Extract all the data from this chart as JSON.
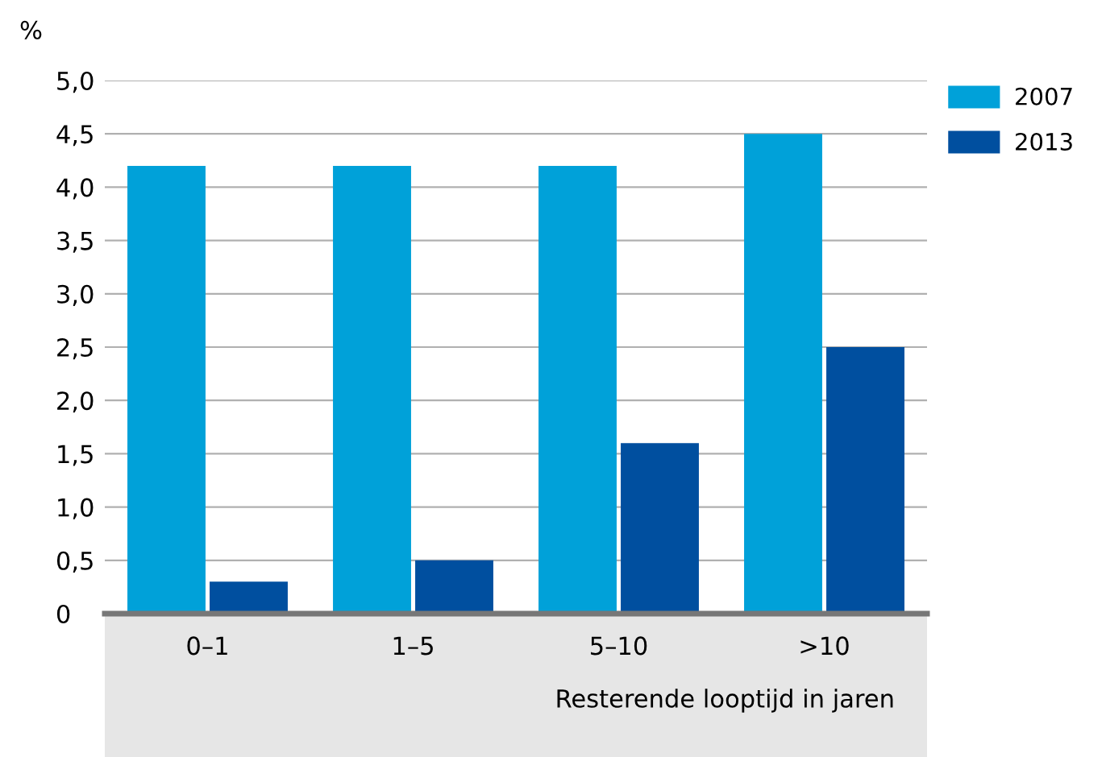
{
  "chart_data": {
    "type": "bar",
    "categories": [
      "0–1",
      "1–5",
      "5–10",
      ">10"
    ],
    "series": [
      {
        "name": "2007",
        "color": "#00a1d9",
        "values": [
          4.2,
          4.2,
          4.2,
          4.5
        ]
      },
      {
        "name": "2013",
        "color": "#004f9f",
        "values": [
          0.3,
          0.5,
          1.6,
          2.5
        ]
      }
    ],
    "ylabel": "%",
    "xlabel": "Resterende looptijd in jaren",
    "ylim": [
      0,
      5
    ],
    "yticks": [
      {
        "value": 0,
        "label": "0"
      },
      {
        "value": 0.5,
        "label": "0,5"
      },
      {
        "value": 1,
        "label": "1,0"
      },
      {
        "value": 1.5,
        "label": "1,5"
      },
      {
        "value": 2,
        "label": "2,0"
      },
      {
        "value": 2.5,
        "label": "2,5"
      },
      {
        "value": 3,
        "label": "3,0"
      },
      {
        "value": 3.5,
        "label": "3,5"
      },
      {
        "value": 4,
        "label": "4,0"
      },
      {
        "value": 4.5,
        "label": "4,5"
      },
      {
        "value": 5,
        "label": "5,0"
      }
    ],
    "grid": "y",
    "legend": "top right"
  }
}
